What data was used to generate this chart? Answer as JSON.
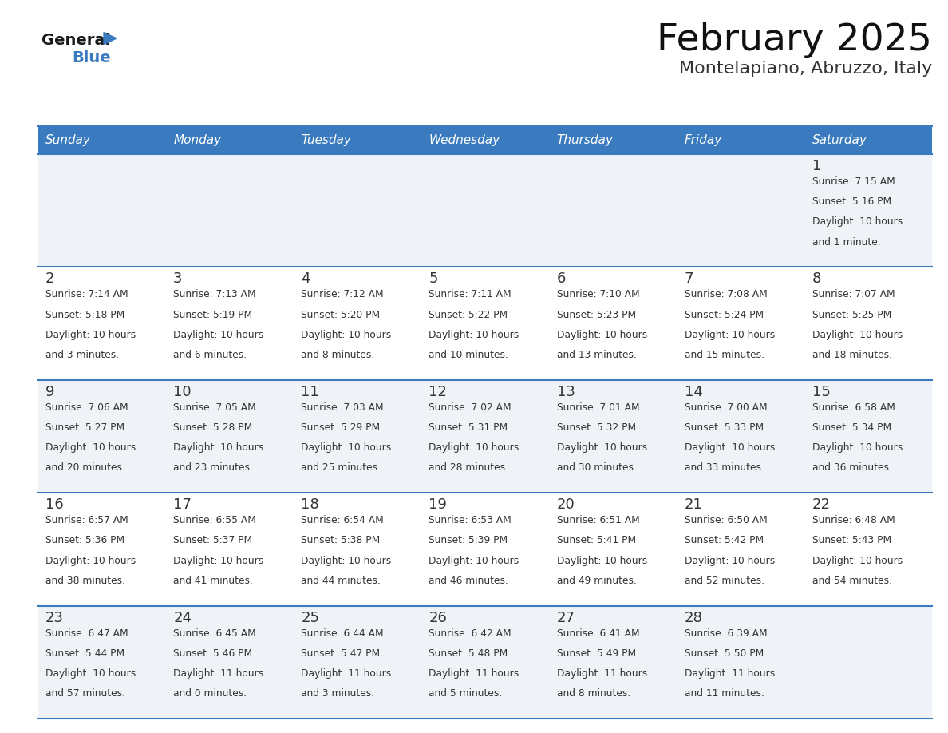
{
  "title": "February 2025",
  "subtitle": "Montelapiano, Abruzzo, Italy",
  "header_color": "#3a7bbf",
  "header_text_color": "#ffffff",
  "days_of_week": [
    "Sunday",
    "Monday",
    "Tuesday",
    "Wednesday",
    "Thursday",
    "Friday",
    "Saturday"
  ],
  "row_bg_even": "#eff3f8",
  "row_bg_odd": "#ffffff",
  "cell_border_color": "#3a7bbf",
  "day_number_color": "#333333",
  "info_text_color": "#333333",
  "calendar_data": [
    [
      null,
      null,
      null,
      null,
      null,
      null,
      {
        "day": "1",
        "sunrise": "7:15 AM",
        "sunset": "5:16 PM",
        "daylight": "10 hours\nand 1 minute."
      }
    ],
    [
      {
        "day": "2",
        "sunrise": "7:14 AM",
        "sunset": "5:18 PM",
        "daylight": "10 hours\nand 3 minutes."
      },
      {
        "day": "3",
        "sunrise": "7:13 AM",
        "sunset": "5:19 PM",
        "daylight": "10 hours\nand 6 minutes."
      },
      {
        "day": "4",
        "sunrise": "7:12 AM",
        "sunset": "5:20 PM",
        "daylight": "10 hours\nand 8 minutes."
      },
      {
        "day": "5",
        "sunrise": "7:11 AM",
        "sunset": "5:22 PM",
        "daylight": "10 hours\nand 10 minutes."
      },
      {
        "day": "6",
        "sunrise": "7:10 AM",
        "sunset": "5:23 PM",
        "daylight": "10 hours\nand 13 minutes."
      },
      {
        "day": "7",
        "sunrise": "7:08 AM",
        "sunset": "5:24 PM",
        "daylight": "10 hours\nand 15 minutes."
      },
      {
        "day": "8",
        "sunrise": "7:07 AM",
        "sunset": "5:25 PM",
        "daylight": "10 hours\nand 18 minutes."
      }
    ],
    [
      {
        "day": "9",
        "sunrise": "7:06 AM",
        "sunset": "5:27 PM",
        "daylight": "10 hours\nand 20 minutes."
      },
      {
        "day": "10",
        "sunrise": "7:05 AM",
        "sunset": "5:28 PM",
        "daylight": "10 hours\nand 23 minutes."
      },
      {
        "day": "11",
        "sunrise": "7:03 AM",
        "sunset": "5:29 PM",
        "daylight": "10 hours\nand 25 minutes."
      },
      {
        "day": "12",
        "sunrise": "7:02 AM",
        "sunset": "5:31 PM",
        "daylight": "10 hours\nand 28 minutes."
      },
      {
        "day": "13",
        "sunrise": "7:01 AM",
        "sunset": "5:32 PM",
        "daylight": "10 hours\nand 30 minutes."
      },
      {
        "day": "14",
        "sunrise": "7:00 AM",
        "sunset": "5:33 PM",
        "daylight": "10 hours\nand 33 minutes."
      },
      {
        "day": "15",
        "sunrise": "6:58 AM",
        "sunset": "5:34 PM",
        "daylight": "10 hours\nand 36 minutes."
      }
    ],
    [
      {
        "day": "16",
        "sunrise": "6:57 AM",
        "sunset": "5:36 PM",
        "daylight": "10 hours\nand 38 minutes."
      },
      {
        "day": "17",
        "sunrise": "6:55 AM",
        "sunset": "5:37 PM",
        "daylight": "10 hours\nand 41 minutes."
      },
      {
        "day": "18",
        "sunrise": "6:54 AM",
        "sunset": "5:38 PM",
        "daylight": "10 hours\nand 44 minutes."
      },
      {
        "day": "19",
        "sunrise": "6:53 AM",
        "sunset": "5:39 PM",
        "daylight": "10 hours\nand 46 minutes."
      },
      {
        "day": "20",
        "sunrise": "6:51 AM",
        "sunset": "5:41 PM",
        "daylight": "10 hours\nand 49 minutes."
      },
      {
        "day": "21",
        "sunrise": "6:50 AM",
        "sunset": "5:42 PM",
        "daylight": "10 hours\nand 52 minutes."
      },
      {
        "day": "22",
        "sunrise": "6:48 AM",
        "sunset": "5:43 PM",
        "daylight": "10 hours\nand 54 minutes."
      }
    ],
    [
      {
        "day": "23",
        "sunrise": "6:47 AM",
        "sunset": "5:44 PM",
        "daylight": "10 hours\nand 57 minutes."
      },
      {
        "day": "24",
        "sunrise": "6:45 AM",
        "sunset": "5:46 PM",
        "daylight": "11 hours\nand 0 minutes."
      },
      {
        "day": "25",
        "sunrise": "6:44 AM",
        "sunset": "5:47 PM",
        "daylight": "11 hours\nand 3 minutes."
      },
      {
        "day": "26",
        "sunrise": "6:42 AM",
        "sunset": "5:48 PM",
        "daylight": "11 hours\nand 5 minutes."
      },
      {
        "day": "27",
        "sunrise": "6:41 AM",
        "sunset": "5:49 PM",
        "daylight": "11 hours\nand 8 minutes."
      },
      {
        "day": "28",
        "sunrise": "6:39 AM",
        "sunset": "5:50 PM",
        "daylight": "11 hours\nand 11 minutes."
      },
      null
    ]
  ]
}
